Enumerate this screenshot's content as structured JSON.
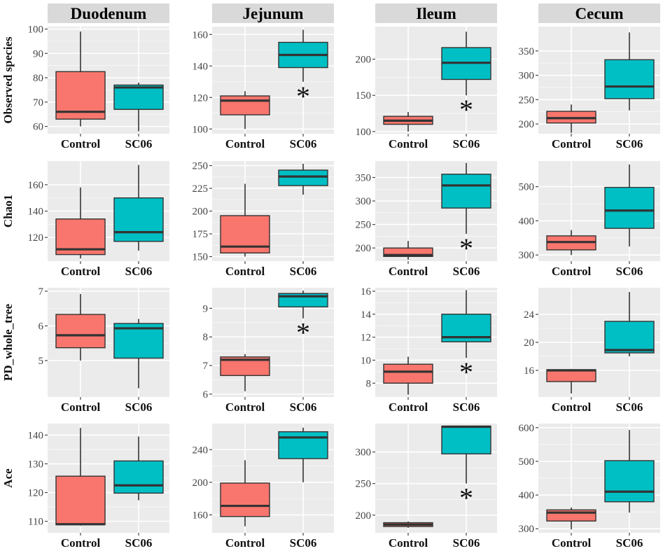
{
  "chart_data": {
    "type": "boxplot",
    "layout": "facet-grid 4x4",
    "columns": [
      "Duodenum",
      "Jejunum",
      "Ileum",
      "Cecum"
    ],
    "rows": [
      "Observed species",
      "Chao1",
      "PD_whole_tree",
      "Ace"
    ],
    "categories": [
      "Control",
      "SC06"
    ],
    "colors": {
      "Control": "#F8766D",
      "SC06": "#00BFC4",
      "panel_bg": "#EBEBEB",
      "grid": "#FFFFFF",
      "strip_bg": "#D9D9D9",
      "line": "#333333"
    },
    "significance_marker": "*",
    "panels": [
      {
        "row": "Observed species",
        "column": "Duodenum",
        "ylim": [
          57,
          101
        ],
        "yticks": [
          60,
          70,
          80,
          90,
          100
        ],
        "significant": false,
        "boxes": {
          "Control": {
            "min": 60,
            "q1": 63,
            "median": 66,
            "q3": 82.5,
            "max": 99
          },
          "SC06": {
            "min": 58,
            "q1": 67,
            "median": 76,
            "q3": 77,
            "max": 78
          }
        }
      },
      {
        "row": "Observed species",
        "column": "Jejunum",
        "ylim": [
          97,
          165
        ],
        "yticks": [
          100,
          120,
          140,
          160
        ],
        "significant": true,
        "boxes": {
          "Control": {
            "min": 100,
            "q1": 109,
            "median": 118,
            "q3": 121,
            "max": 124
          },
          "SC06": {
            "min": 130,
            "q1": 139,
            "median": 147,
            "q3": 155,
            "max": 163
          }
        }
      },
      {
        "row": "Observed species",
        "column": "Ileum",
        "ylim": [
          97,
          245
        ],
        "yticks": [
          100,
          150,
          200
        ],
        "significant": true,
        "boxes": {
          "Control": {
            "min": 100,
            "q1": 110,
            "median": 115,
            "q3": 121,
            "max": 127
          },
          "SC06": {
            "min": 150,
            "q1": 172,
            "median": 195,
            "q3": 216,
            "max": 238
          }
        }
      },
      {
        "row": "Observed species",
        "column": "Cecum",
        "ylim": [
          180,
          400
        ],
        "yticks": [
          200,
          250,
          300,
          350
        ],
        "significant": false,
        "boxes": {
          "Control": {
            "min": 182,
            "q1": 202,
            "median": 212,
            "q3": 226,
            "max": 240
          },
          "SC06": {
            "min": 228,
            "q1": 252,
            "median": 277,
            "q3": 332,
            "max": 388
          }
        }
      },
      {
        "row": "Chao1",
        "column": "Duodenum",
        "ylim": [
          102,
          178
        ],
        "yticks": [
          120,
          140,
          160
        ],
        "significant": false,
        "boxes": {
          "Control": {
            "min": 104,
            "q1": 107,
            "median": 111,
            "q3": 134,
            "max": 158
          },
          "SC06": {
            "min": 110,
            "q1": 117,
            "median": 124,
            "q3": 150,
            "max": 175
          }
        }
      },
      {
        "row": "Chao1",
        "column": "Jejunum",
        "ylim": [
          145,
          255
        ],
        "yticks": [
          150,
          175,
          200,
          225,
          250
        ],
        "significant": false,
        "boxes": {
          "Control": {
            "min": 150,
            "q1": 154,
            "median": 161,
            "q3": 195,
            "max": 230
          },
          "SC06": {
            "min": 218,
            "q1": 228,
            "median": 238,
            "q3": 245,
            "max": 252
          }
        }
      },
      {
        "row": "Chao1",
        "column": "Ileum",
        "ylim": [
          172,
          385
        ],
        "yticks": [
          200,
          250,
          300,
          350
        ],
        "significant": true,
        "boxes": {
          "Control": {
            "min": 175,
            "q1": 182,
            "median": 185,
            "q3": 200,
            "max": 215
          },
          "SC06": {
            "min": 230,
            "q1": 285,
            "median": 333,
            "q3": 357,
            "max": 381
          }
        }
      },
      {
        "row": "Chao1",
        "column": "Cecum",
        "ylim": [
          282,
          575
        ],
        "yticks": [
          300,
          400,
          500
        ],
        "significant": false,
        "boxes": {
          "Control": {
            "min": 300,
            "q1": 315,
            "median": 338,
            "q3": 356,
            "max": 373
          },
          "SC06": {
            "min": 325,
            "q1": 378,
            "median": 430,
            "q3": 498,
            "max": 565
          }
        }
      },
      {
        "row": "PD_whole_tree",
        "column": "Duodenum",
        "ylim": [
          3.95,
          7.1
        ],
        "yticks": [
          5,
          6,
          7
        ],
        "significant": false,
        "boxes": {
          "Control": {
            "min": 5.0,
            "q1": 5.37,
            "median": 5.73,
            "q3": 6.33,
            "max": 6.92
          },
          "SC06": {
            "min": 4.2,
            "q1": 5.07,
            "median": 5.93,
            "q3": 6.07,
            "max": 6.2
          }
        }
      },
      {
        "row": "PD_whole_tree",
        "column": "Jejunum",
        "ylim": [
          5.9,
          9.72
        ],
        "yticks": [
          6,
          7,
          8,
          9
        ],
        "significant": true,
        "boxes": {
          "Control": {
            "min": 6.1,
            "q1": 6.65,
            "median": 7.2,
            "q3": 7.3,
            "max": 7.4
          },
          "SC06": {
            "min": 8.65,
            "q1": 9.05,
            "median": 9.42,
            "q3": 9.52,
            "max": 9.62
          }
        }
      },
      {
        "row": "PD_whole_tree",
        "column": "Ileum",
        "ylim": [
          6.8,
          16.3
        ],
        "yticks": [
          8,
          10,
          12,
          14,
          16
        ],
        "significant": true,
        "boxes": {
          "Control": {
            "min": 7.0,
            "q1": 8.0,
            "median": 9.0,
            "q3": 9.65,
            "max": 10.3
          },
          "SC06": {
            "min": 10.2,
            "q1": 11.6,
            "median": 12.0,
            "q3": 14.0,
            "max": 16.1
          }
        }
      },
      {
        "row": "PD_whole_tree",
        "column": "Cecum",
        "ylim": [
          12.2,
          27.8
        ],
        "yticks": [
          16,
          20,
          24
        ],
        "significant": false,
        "boxes": {
          "Control": {
            "min": 12.7,
            "q1": 14.4,
            "median": 16.0,
            "q3": 16.1,
            "max": 16.2
          },
          "SC06": {
            "min": 18.0,
            "q1": 18.5,
            "median": 18.9,
            "q3": 23.0,
            "max": 27.2
          }
        }
      },
      {
        "row": "Ace",
        "column": "Duodenum",
        "ylim": [
          106,
          144
        ],
        "yticks": [
          110,
          120,
          130,
          140
        ],
        "significant": false,
        "boxes": {
          "Control": {
            "min": 108.5,
            "q1": 108.8,
            "median": 109.0,
            "q3": 125.7,
            "max": 142.5
          },
          "SC06": {
            "min": 117.3,
            "q1": 119.8,
            "median": 122.5,
            "q3": 131.0,
            "max": 139.5
          }
        }
      },
      {
        "row": "Ace",
        "column": "Jejunum",
        "ylim": [
          138,
          272
        ],
        "yticks": [
          160,
          200,
          240
        ],
        "significant": false,
        "boxes": {
          "Control": {
            "min": 146,
            "q1": 158,
            "median": 171,
            "q3": 199,
            "max": 227
          },
          "SC06": {
            "min": 200,
            "q1": 229,
            "median": 255,
            "q3": 262,
            "max": 267
          }
        }
      },
      {
        "row": "Ace",
        "column": "Ileum",
        "ylim": [
          172,
          345
        ],
        "yticks": [
          200,
          250,
          300
        ],
        "significant": true,
        "boxes": {
          "Control": {
            "min": 180,
            "q1": 182,
            "median": 185,
            "q3": 188,
            "max": 190
          },
          "SC06": {
            "min": 250,
            "q1": 297,
            "median": 340,
            "q3": 341,
            "max": 342
          }
        }
      },
      {
        "row": "Ace",
        "column": "Cecum",
        "ylim": [
          288,
          612
        ],
        "yticks": [
          300,
          400,
          500,
          600
        ],
        "significant": false,
        "boxes": {
          "Control": {
            "min": 298,
            "q1": 323,
            "median": 348,
            "q3": 356,
            "max": 363
          },
          "SC06": {
            "min": 348,
            "q1": 380,
            "median": 410,
            "q3": 502,
            "max": 593
          }
        }
      }
    ]
  }
}
